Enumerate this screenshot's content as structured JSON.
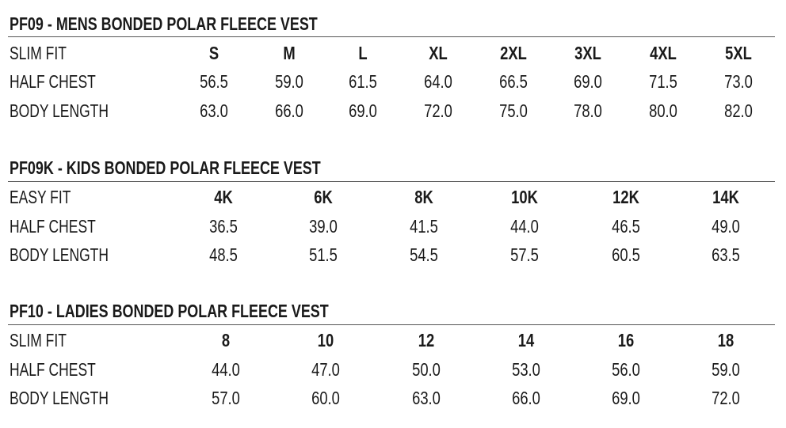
{
  "tables": [
    {
      "title": "PF09 - MENS BONDED POLAR FLEECE VEST",
      "header": [
        "SLIM FIT",
        "S",
        "M",
        "L",
        "XL",
        "2XL",
        "3XL",
        "4XL",
        "5XL"
      ],
      "rows": [
        [
          "HALF CHEST",
          "56.5",
          "59.0",
          "61.5",
          "64.0",
          "66.5",
          "69.0",
          "71.5",
          "73.0"
        ],
        [
          "BODY LENGTH",
          "63.0",
          "66.0",
          "69.0",
          "72.0",
          "75.0",
          "78.0",
          "80.0",
          "82.0"
        ]
      ]
    },
    {
      "title": "PF09K - KIDS BONDED POLAR FLEECE VEST",
      "header": [
        "EASY FIT",
        "4K",
        "6K",
        "8K",
        "10K",
        "12K",
        "14K"
      ],
      "rows": [
        [
          "HALF CHEST",
          "36.5",
          "39.0",
          "41.5",
          "44.0",
          "46.5",
          "49.0"
        ],
        [
          "BODY LENGTH",
          "48.5",
          "51.5",
          "54.5",
          "57.5",
          "60.5",
          "63.5"
        ]
      ]
    },
    {
      "title": "PF10 - LADIES BONDED POLAR FLEECE VEST",
      "header": [
        "SLIM FIT",
        "8",
        "10",
        "12",
        "14",
        "16",
        "18"
      ],
      "rows": [
        [
          "HALF CHEST",
          "44.0",
          "47.0",
          "50.0",
          "53.0",
          "56.0",
          "59.0"
        ],
        [
          "BODY LENGTH",
          "57.0",
          "60.0",
          "63.0",
          "66.0",
          "69.0",
          "72.0"
        ]
      ]
    }
  ]
}
